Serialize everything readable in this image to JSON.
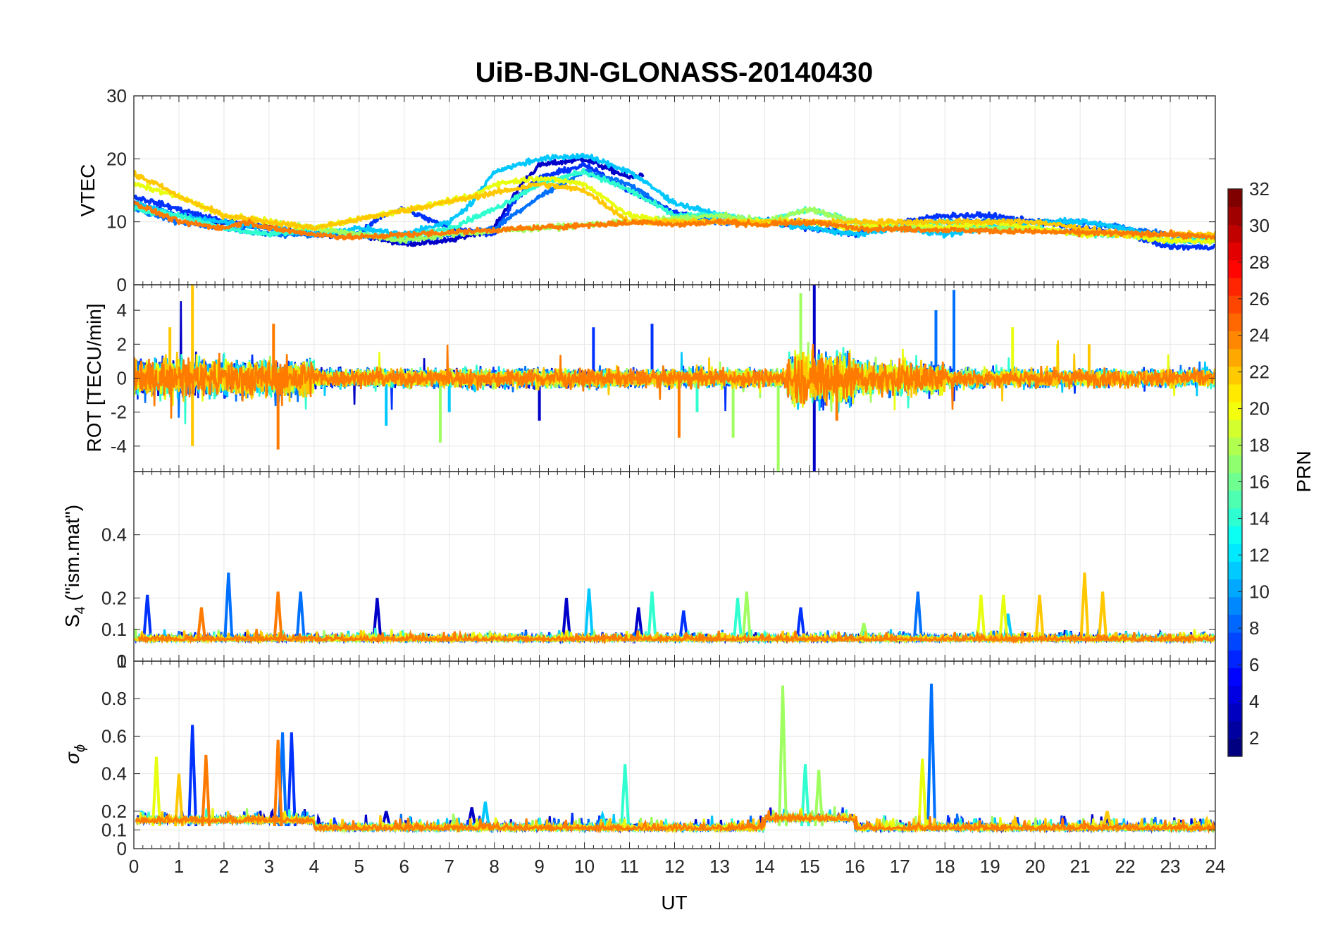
{
  "chart_data": {
    "type": "line",
    "title": "UiB-BJN-GLONASS-20140430",
    "xlabel": "UT",
    "xlim": [
      0,
      24
    ],
    "x_ticks": [
      "0",
      "1",
      "2",
      "3",
      "4",
      "5",
      "6",
      "7",
      "8",
      "9",
      "10",
      "11",
      "12",
      "13",
      "14",
      "15",
      "16",
      "17",
      "18",
      "19",
      "20",
      "21",
      "22",
      "23",
      "24"
    ],
    "grid": true,
    "panels": [
      {
        "id": "vtec",
        "ylabel": "VTEC",
        "ylim": [
          0,
          30
        ],
        "y_ticks": [
          {
            "v": 0,
            "label": "0"
          },
          {
            "v": 10,
            "label": "10"
          },
          {
            "v": 20,
            "label": "20"
          },
          {
            "v": 30,
            "label": "30"
          }
        ],
        "series_note": "multiple PRN traces colored by PRN"
      },
      {
        "id": "rot",
        "ylabel": "ROT [TECU/min]",
        "ylim": [
          -5.5,
          5.5
        ],
        "y_ticks": [
          {
            "v": -4,
            "label": "-4"
          },
          {
            "v": -2,
            "label": "-2"
          },
          {
            "v": 0,
            "label": "0"
          },
          {
            "v": 2,
            "label": "2"
          },
          {
            "v": 4,
            "label": "4"
          }
        ]
      },
      {
        "id": "s4",
        "ylabel_main": "S",
        "ylabel_sub": "4",
        "ylabel_rest": " (\"ism.mat\")",
        "ylim": [
          0,
          0.6
        ],
        "y_ticks": [
          {
            "v": 0,
            "label": "0"
          },
          {
            "v": 0.1,
            "label": "0.1"
          },
          {
            "v": 0.2,
            "label": "0.2"
          },
          {
            "v": 0.4,
            "label": "0.4"
          }
        ]
      },
      {
        "id": "sigma",
        "ylabel_main": "σ",
        "ylabel_sub": "ϕ",
        "ylim": [
          0,
          1
        ],
        "y_ticks": [
          {
            "v": 0,
            "label": "0"
          },
          {
            "v": 0.1,
            "label": "0.1"
          },
          {
            "v": 0.2,
            "label": "0.2"
          },
          {
            "v": 0.4,
            "label": "0.4"
          },
          {
            "v": 0.6,
            "label": "0.6"
          },
          {
            "v": 0.8,
            "label": "0.8"
          },
          {
            "v": 1,
            "label": "1"
          }
        ]
      }
    ],
    "colorbar": {
      "label": "PRN",
      "range": [
        1,
        32
      ],
      "ticks": [
        "2",
        "4",
        "6",
        "8",
        "10",
        "12",
        "14",
        "16",
        "18",
        "20",
        "22",
        "24",
        "26",
        "28",
        "30",
        "32"
      ],
      "colormap": "jet"
    },
    "series": [
      {
        "name": "PRN 2",
        "prn": 2,
        "color": "#0000c8",
        "vtec": [
          [
            0,
            13
          ],
          [
            1,
            11
          ],
          [
            2,
            10
          ],
          [
            3,
            9
          ],
          [
            4,
            8
          ],
          [
            5,
            8
          ],
          [
            6,
            6.5
          ],
          [
            7,
            7
          ],
          [
            8,
            9
          ],
          [
            8.6,
            16
          ],
          [
            9,
            19
          ],
          [
            10,
            20
          ],
          [
            11,
            17
          ],
          [
            11.3,
            17.5
          ]
        ],
        "spikes_s4": [
          [
            5.4,
            0.2
          ],
          [
            9.6,
            0.2
          ],
          [
            11.2,
            0.17
          ]
        ],
        "spikes_sig": [
          [
            5.6,
            0.2
          ],
          [
            7.5,
            0.22
          ]
        ],
        "spikes_rot": [
          [
            15.1,
            5.5
          ],
          [
            15.1,
            -5.5
          ],
          [
            9.0,
            -2.5
          ]
        ]
      },
      {
        "name": "PRN 4",
        "prn": 4,
        "color": "#0032ff",
        "vtec": [
          [
            0,
            14
          ],
          [
            1,
            12
          ],
          [
            2,
            10
          ],
          [
            3,
            9
          ],
          [
            4,
            8
          ],
          [
            5,
            8
          ],
          [
            5.5,
            11
          ],
          [
            6,
            12
          ],
          [
            7,
            9
          ],
          [
            8,
            8
          ],
          [
            8.5,
            14
          ],
          [
            9,
            17
          ],
          [
            10,
            19
          ],
          [
            11,
            15
          ],
          [
            12,
            11.5
          ],
          [
            13,
            10
          ],
          [
            14,
            10
          ],
          [
            15,
            9
          ],
          [
            16,
            8
          ],
          [
            17,
            10
          ],
          [
            18,
            11
          ],
          [
            19,
            11
          ],
          [
            20,
            10
          ],
          [
            21,
            9
          ],
          [
            22,
            8
          ],
          [
            23,
            6
          ],
          [
            24,
            6
          ]
        ],
        "spikes_s4": [
          [
            0.3,
            0.21
          ],
          [
            12.2,
            0.16
          ],
          [
            14.8,
            0.17
          ]
        ],
        "spikes_sig": [
          [
            1.3,
            0.66
          ],
          [
            3.5,
            0.62
          ]
        ],
        "spikes_rot": [
          [
            11.5,
            3.2
          ],
          [
            10.2,
            3.0
          ]
        ]
      },
      {
        "name": "PRN 8",
        "prn": 8,
        "color": "#0070ff",
        "vtec": [
          [
            0,
            12
          ],
          [
            1,
            10
          ],
          [
            2,
            9
          ],
          [
            3,
            8
          ],
          [
            4,
            8
          ],
          [
            5,
            8
          ],
          [
            6,
            7
          ],
          [
            7,
            8
          ],
          [
            8,
            9
          ],
          [
            9,
            14
          ],
          [
            10,
            18
          ],
          [
            11,
            16
          ],
          [
            12,
            11
          ],
          [
            13,
            10
          ],
          [
            14,
            10
          ],
          [
            15,
            10
          ],
          [
            16,
            9
          ],
          [
            17,
            9
          ],
          [
            18,
            10
          ],
          [
            19,
            10
          ],
          [
            20,
            10
          ],
          [
            21,
            10
          ],
          [
            22,
            9
          ],
          [
            23,
            8
          ],
          [
            24,
            7
          ]
        ],
        "spikes_s4": [
          [
            2.1,
            0.28
          ],
          [
            3.7,
            0.22
          ],
          [
            17.4,
            0.22
          ]
        ],
        "spikes_sig": [
          [
            3.3,
            0.62
          ],
          [
            17.7,
            0.88
          ]
        ],
        "spikes_rot": [
          [
            18.2,
            5.2
          ],
          [
            17.8,
            4.0
          ]
        ]
      },
      {
        "name": "PRN 12",
        "prn": 12,
        "color": "#00c8ff",
        "vtec": [
          [
            0,
            13
          ],
          [
            1,
            11
          ],
          [
            2,
            10
          ],
          [
            3,
            9
          ],
          [
            4,
            8
          ],
          [
            5,
            9
          ],
          [
            6,
            8
          ],
          [
            7,
            10
          ],
          [
            7.5,
            13
          ],
          [
            8,
            18
          ],
          [
            9,
            20
          ],
          [
            10,
            20.5
          ],
          [
            11,
            18
          ],
          [
            12,
            13
          ],
          [
            13,
            11
          ],
          [
            14,
            10
          ],
          [
            15,
            9
          ],
          [
            16,
            8
          ],
          [
            17,
            9
          ],
          [
            18,
            8
          ],
          [
            19,
            9
          ],
          [
            20,
            10
          ],
          [
            21,
            10
          ],
          [
            22,
            9
          ],
          [
            23,
            7
          ],
          [
            24,
            7
          ]
        ],
        "spikes_s4": [
          [
            10.1,
            0.23
          ],
          [
            19.4,
            0.15
          ]
        ],
        "spikes_sig": [
          [
            7.8,
            0.25
          ],
          [
            10.4,
            0.18
          ]
        ],
        "spikes_rot": [
          [
            5.6,
            -2.8
          ],
          [
            7.0,
            -2.0
          ]
        ]
      },
      {
        "name": "PRN 14",
        "prn": 14,
        "color": "#30ffd0",
        "vtec": [
          [
            0,
            12
          ],
          [
            1,
            11
          ],
          [
            2,
            9
          ],
          [
            3,
            8
          ],
          [
            4,
            9
          ],
          [
            5,
            8
          ],
          [
            6,
            7.5
          ],
          [
            7,
            9
          ],
          [
            8,
            12
          ],
          [
            9,
            16
          ],
          [
            10,
            18
          ],
          [
            11,
            15
          ],
          [
            12,
            11
          ],
          [
            13,
            11
          ],
          [
            14,
            10
          ],
          [
            15,
            12
          ],
          [
            16,
            10
          ],
          [
            17,
            9
          ],
          [
            18,
            10
          ],
          [
            19,
            9
          ],
          [
            20,
            9
          ],
          [
            21,
            8
          ],
          [
            22,
            8
          ],
          [
            23,
            7
          ],
          [
            24,
            7
          ]
        ],
        "spikes_s4": [
          [
            11.5,
            0.22
          ],
          [
            13.4,
            0.2
          ]
        ],
        "spikes_sig": [
          [
            10.9,
            0.45
          ],
          [
            14.9,
            0.45
          ]
        ],
        "spikes_rot": [
          [
            12.5,
            -2.0
          ]
        ]
      },
      {
        "name": "PRN 17",
        "prn": 17,
        "color": "#a0ff60",
        "vtec": [
          [
            3,
            10
          ],
          [
            4,
            9
          ],
          [
            5,
            8
          ],
          [
            6,
            7
          ],
          [
            7,
            8
          ],
          [
            13,
            11
          ],
          [
            14,
            10
          ],
          [
            15,
            12
          ],
          [
            16,
            10
          ],
          [
            17,
            9
          ],
          [
            18,
            9
          ],
          [
            19,
            9
          ],
          [
            20,
            9
          ]
        ],
        "spikes_s4": [
          [
            13.6,
            0.22
          ],
          [
            16.2,
            0.12
          ]
        ],
        "spikes_sig": [
          [
            14.4,
            0.87
          ],
          [
            15.2,
            0.42
          ]
        ],
        "spikes_rot": [
          [
            14.3,
            -5.5
          ],
          [
            14.8,
            5.0
          ],
          [
            13.3,
            -3.5
          ],
          [
            6.8,
            -3.8
          ]
        ]
      },
      {
        "name": "PRN 19",
        "prn": 19,
        "color": "#e8ff10",
        "vtec": [
          [
            0,
            16
          ],
          [
            1,
            14
          ],
          [
            2,
            11
          ],
          [
            3,
            10
          ],
          [
            4,
            9
          ],
          [
            7.5,
            14
          ],
          [
            8,
            16
          ],
          [
            9,
            17
          ],
          [
            10,
            16
          ],
          [
            11,
            11
          ],
          [
            12,
            10
          ],
          [
            13,
            10
          ],
          [
            14,
            10
          ],
          [
            15,
            10
          ],
          [
            16,
            9
          ],
          [
            17,
            10
          ],
          [
            18,
            9
          ],
          [
            19,
            10
          ],
          [
            20,
            9
          ],
          [
            21,
            8
          ],
          [
            22,
            8
          ],
          [
            23,
            7
          ],
          [
            24,
            7
          ]
        ],
        "spikes_s4": [
          [
            18.8,
            0.21
          ],
          [
            19.3,
            0.21
          ]
        ],
        "spikes_sig": [
          [
            0.5,
            0.49
          ],
          [
            17.5,
            0.48
          ]
        ],
        "spikes_rot": [
          [
            19.5,
            3.0
          ],
          [
            20.5,
            2.0
          ]
        ]
      },
      {
        "name": "PRN 21",
        "prn": 21,
        "color": "#ffc800",
        "vtec": [
          [
            0,
            17.5
          ],
          [
            0.5,
            16
          ],
          [
            1,
            14
          ],
          [
            2,
            11
          ],
          [
            3,
            10
          ],
          [
            4,
            9
          ],
          [
            9,
            16
          ],
          [
            10,
            15
          ],
          [
            11,
            10
          ],
          [
            12,
            10
          ],
          [
            13,
            10
          ],
          [
            14,
            10
          ],
          [
            16,
            10
          ],
          [
            18,
            10
          ],
          [
            20,
            10
          ],
          [
            21,
            9
          ],
          [
            22,
            8
          ],
          [
            23,
            8
          ],
          [
            24,
            8
          ]
        ],
        "spikes_s4": [
          [
            20.1,
            0.21
          ],
          [
            21.1,
            0.28
          ],
          [
            21.5,
            0.22
          ]
        ],
        "spikes_sig": [
          [
            1.0,
            0.4
          ],
          [
            21.6,
            0.2
          ]
        ],
        "spikes_rot": [
          [
            1.3,
            5.5
          ],
          [
            1.3,
            -4.0
          ],
          [
            0.8,
            3.0
          ],
          [
            21.2,
            2.0
          ]
        ]
      },
      {
        "name": "PRN 23",
        "prn": 23,
        "color": "#ff7a00",
        "vtec": [
          [
            0,
            13
          ],
          [
            1,
            10
          ],
          [
            2,
            9
          ],
          [
            2.5,
            10
          ],
          [
            3,
            9
          ],
          [
            4,
            8
          ],
          [
            4.8,
            7.5
          ],
          [
            11.5,
            10
          ],
          [
            12,
            9.5
          ],
          [
            13,
            10
          ],
          [
            14,
            9.5
          ],
          [
            15,
            10
          ],
          [
            16,
            9
          ],
          [
            23,
            8
          ],
          [
            24,
            7.5
          ]
        ],
        "spikes_s4": [
          [
            3.2,
            0.22
          ],
          [
            1.5,
            0.17
          ]
        ],
        "spikes_sig": [
          [
            1.6,
            0.5
          ],
          [
            3.2,
            0.58
          ]
        ],
        "spikes_rot": [
          [
            3.2,
            -4.2
          ],
          [
            3.1,
            3.2
          ],
          [
            12.1,
            -3.5
          ],
          [
            15.6,
            -2.5
          ]
        ]
      }
    ]
  }
}
